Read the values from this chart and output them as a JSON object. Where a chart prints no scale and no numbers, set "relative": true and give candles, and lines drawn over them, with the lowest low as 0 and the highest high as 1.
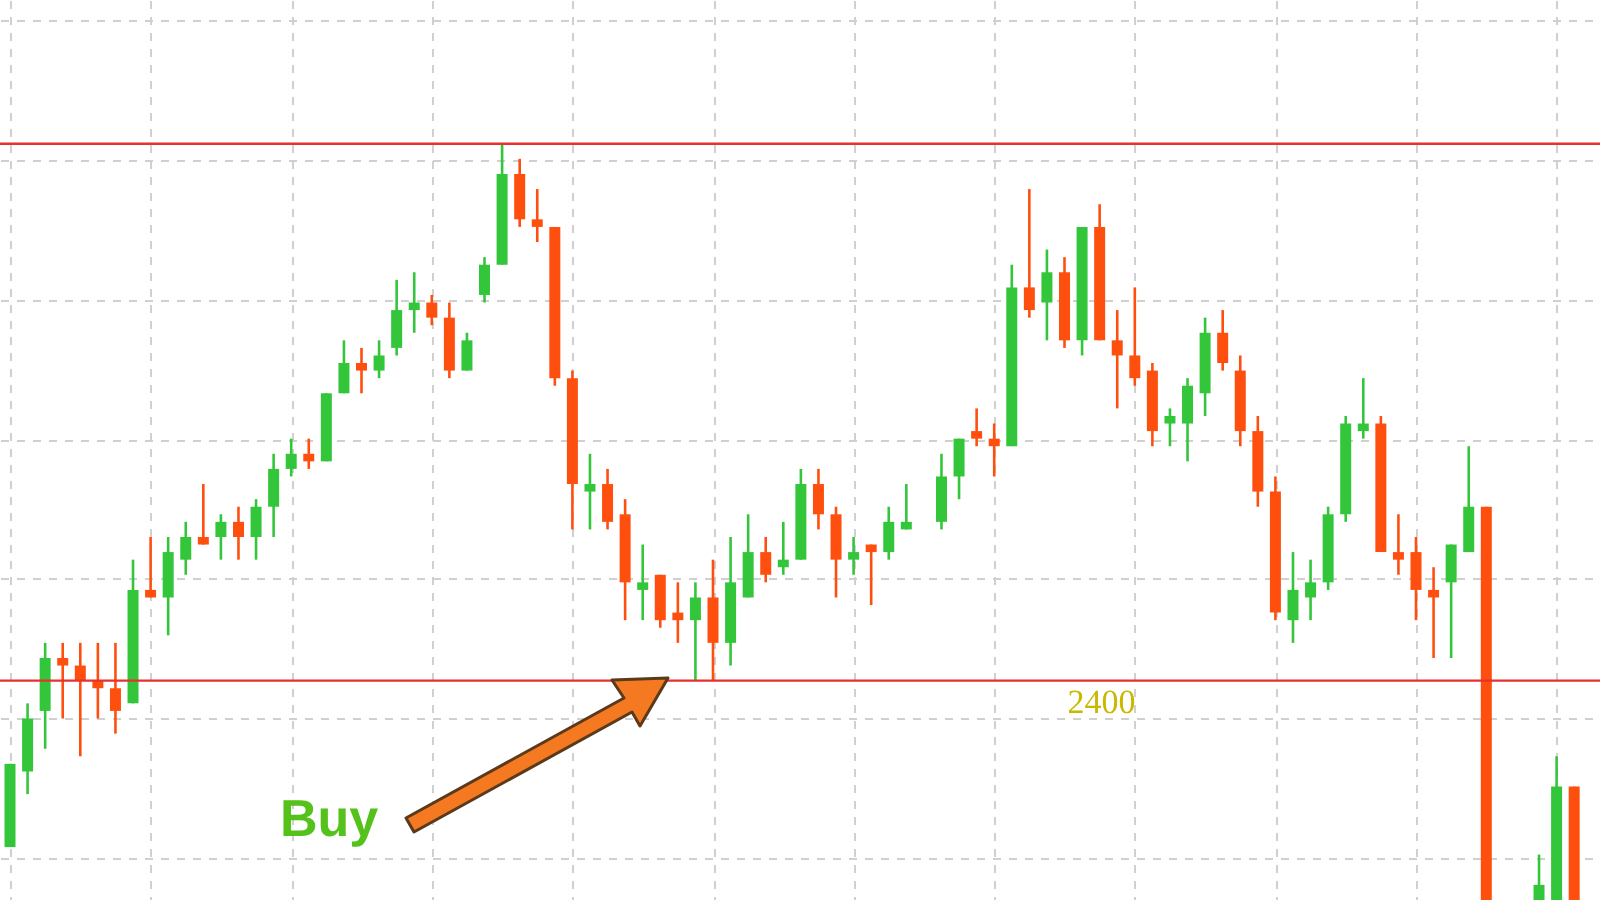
{
  "chart_data": {
    "type": "candlestick",
    "relative": true,
    "grid": true,
    "categories": [
      null,
      null,
      null,
      null,
      null,
      null,
      null,
      null,
      null,
      null,
      null,
      null,
      null,
      null,
      null,
      null,
      null,
      null,
      null,
      null,
      null,
      null,
      null,
      null,
      null,
      null,
      null,
      null,
      null,
      null,
      null,
      null,
      null,
      null,
      null,
      null,
      null,
      null,
      null,
      null,
      null,
      null,
      null,
      null,
      null,
      null,
      null,
      null,
      null,
      null,
      null,
      null,
      null,
      null,
      null,
      null,
      null,
      null,
      null,
      null,
      null,
      null,
      null,
      null,
      null,
      null,
      null,
      null,
      null,
      null,
      null,
      null,
      null,
      null,
      null,
      null,
      null,
      null,
      null,
      null,
      null,
      null,
      null,
      null,
      null,
      null,
      null,
      null,
      null,
      null
    ],
    "ohlc": [
      [
        0.07,
        0.18,
        0.07,
        0.18
      ],
      [
        0.17,
        0.26,
        0.14,
        0.24
      ],
      [
        0.25,
        0.34,
        0.2,
        0.32
      ],
      [
        0.32,
        0.34,
        0.24,
        0.31
      ],
      [
        0.31,
        0.34,
        0.19,
        0.29
      ],
      [
        0.29,
        0.34,
        0.24,
        0.28
      ],
      [
        0.28,
        0.34,
        0.22,
        0.25
      ],
      [
        0.26,
        0.45,
        0.26,
        0.41
      ],
      [
        0.41,
        0.48,
        0.4,
        0.4
      ],
      [
        0.4,
        0.48,
        0.35,
        0.46
      ],
      [
        0.45,
        0.5,
        0.43,
        0.48
      ],
      [
        0.48,
        0.55,
        0.47,
        0.47
      ],
      [
        0.48,
        0.51,
        0.45,
        0.5
      ],
      [
        0.5,
        0.52,
        0.45,
        0.48
      ],
      [
        0.48,
        0.53,
        0.45,
        0.52
      ],
      [
        0.52,
        0.59,
        0.48,
        0.57
      ],
      [
        0.57,
        0.61,
        0.56,
        0.59
      ],
      [
        0.59,
        0.61,
        0.57,
        0.58
      ],
      [
        0.58,
        0.67,
        0.58,
        0.67
      ],
      [
        0.67,
        0.74,
        0.67,
        0.71
      ],
      [
        0.71,
        0.73,
        0.67,
        0.7
      ],
      [
        0.7,
        0.74,
        0.69,
        0.72
      ],
      [
        0.73,
        0.82,
        0.72,
        0.78
      ],
      [
        0.78,
        0.83,
        0.75,
        0.79
      ],
      [
        0.79,
        0.8,
        0.76,
        0.77
      ],
      [
        0.77,
        0.79,
        0.69,
        0.7
      ],
      [
        0.7,
        0.75,
        0.7,
        0.74
      ],
      [
        0.8,
        0.85,
        0.79,
        0.84
      ],
      [
        0.84,
        1,
        0.84,
        0.96
      ],
      [
        0.96,
        0.98,
        0.89,
        0.9
      ],
      [
        0.9,
        0.94,
        0.87,
        0.89
      ],
      [
        0.89,
        0.89,
        0.68,
        0.69
      ],
      [
        0.69,
        0.7,
        0.49,
        0.55
      ],
      [
        0.54,
        0.59,
        0.49,
        0.55
      ],
      [
        0.55,
        0.57,
        0.49,
        0.5
      ],
      [
        0.51,
        0.53,
        0.37,
        0.42
      ],
      [
        0.41,
        0.47,
        0.37,
        0.42
      ],
      [
        0.43,
        0.43,
        0.36,
        0.37
      ],
      [
        0.38,
        0.42,
        0.34,
        0.37
      ],
      [
        0.37,
        0.42,
        0.29,
        0.4
      ],
      [
        0.4,
        0.45,
        0.29,
        0.34
      ],
      [
        0.34,
        0.48,
        0.31,
        0.42
      ],
      [
        0.4,
        0.51,
        0.4,
        0.46
      ],
      [
        0.46,
        0.48,
        0.42,
        0.43
      ],
      [
        0.44,
        0.5,
        0.43,
        0.45
      ],
      [
        0.45,
        0.57,
        0.45,
        0.55
      ],
      [
        0.55,
        0.57,
        0.49,
        0.51
      ],
      [
        0.51,
        0.52,
        0.4,
        0.45
      ],
      [
        0.45,
        0.48,
        0.43,
        0.46
      ],
      [
        0.47,
        0.47,
        0.39,
        0.46
      ],
      [
        0.46,
        0.52,
        0.45,
        0.5
      ],
      [
        0.49,
        0.55,
        0.49,
        0.5
      ],
      null,
      [
        0.5,
        0.59,
        0.49,
        0.56
      ],
      [
        0.56,
        0.61,
        0.53,
        0.61
      ],
      [
        0.62,
        0.65,
        0.6,
        0.61
      ],
      [
        0.61,
        0.63,
        0.56,
        0.6
      ],
      [
        0.6,
        0.84,
        0.6,
        0.81
      ],
      [
        0.81,
        0.94,
        0.77,
        0.78
      ],
      [
        0.79,
        0.86,
        0.74,
        0.83
      ],
      [
        0.83,
        0.85,
        0.73,
        0.74
      ],
      [
        0.74,
        0.89,
        0.72,
        0.89
      ],
      [
        0.89,
        0.92,
        0.74,
        0.74
      ],
      [
        0.74,
        0.78,
        0.65,
        0.72
      ],
      [
        0.72,
        0.81,
        0.68,
        0.69
      ],
      [
        0.7,
        0.71,
        0.6,
        0.62
      ],
      [
        0.63,
        0.65,
        0.6,
        0.64
      ],
      [
        0.63,
        0.69,
        0.58,
        0.68
      ],
      [
        0.67,
        0.77,
        0.64,
        0.75
      ],
      [
        0.75,
        0.78,
        0.7,
        0.71
      ],
      [
        0.7,
        0.72,
        0.6,
        0.62
      ],
      [
        0.62,
        0.64,
        0.52,
        0.54
      ],
      [
        0.54,
        0.56,
        0.37,
        0.38
      ],
      [
        0.37,
        0.46,
        0.34,
        0.41
      ],
      [
        0.4,
        0.45,
        0.37,
        0.42
      ],
      [
        0.42,
        0.52,
        0.41,
        0.51
      ],
      [
        0.51,
        0.64,
        0.5,
        0.63
      ],
      [
        0.62,
        0.69,
        0.61,
        0.63
      ],
      [
        0.63,
        0.64,
        0.46,
        0.46
      ],
      [
        0.46,
        0.51,
        0.43,
        0.45
      ],
      [
        0.46,
        0.48,
        0.37,
        0.41
      ],
      [
        0.41,
        0.44,
        0.32,
        0.4
      ],
      [
        0.42,
        0.47,
        0.32,
        0.47
      ],
      [
        0.46,
        0.6,
        0.46,
        0.52
      ],
      [
        0.52,
        0.52,
        0,
        0
      ],
      null,
      null,
      [
        0,
        0.06,
        0,
        0.02
      ],
      [
        0,
        0.19,
        0,
        0.15
      ],
      [
        0.15,
        0.15,
        0,
        0
      ]
    ],
    "ref_lines": [
      {
        "axis": "y",
        "value": 1,
        "color": "#e8312f"
      },
      {
        "axis": "y",
        "value": 0.29,
        "color": "#e8312f"
      }
    ],
    "annotations": [
      "Buy",
      {
        "text": "2400",
        "y": 0.29
      }
    ]
  }
}
